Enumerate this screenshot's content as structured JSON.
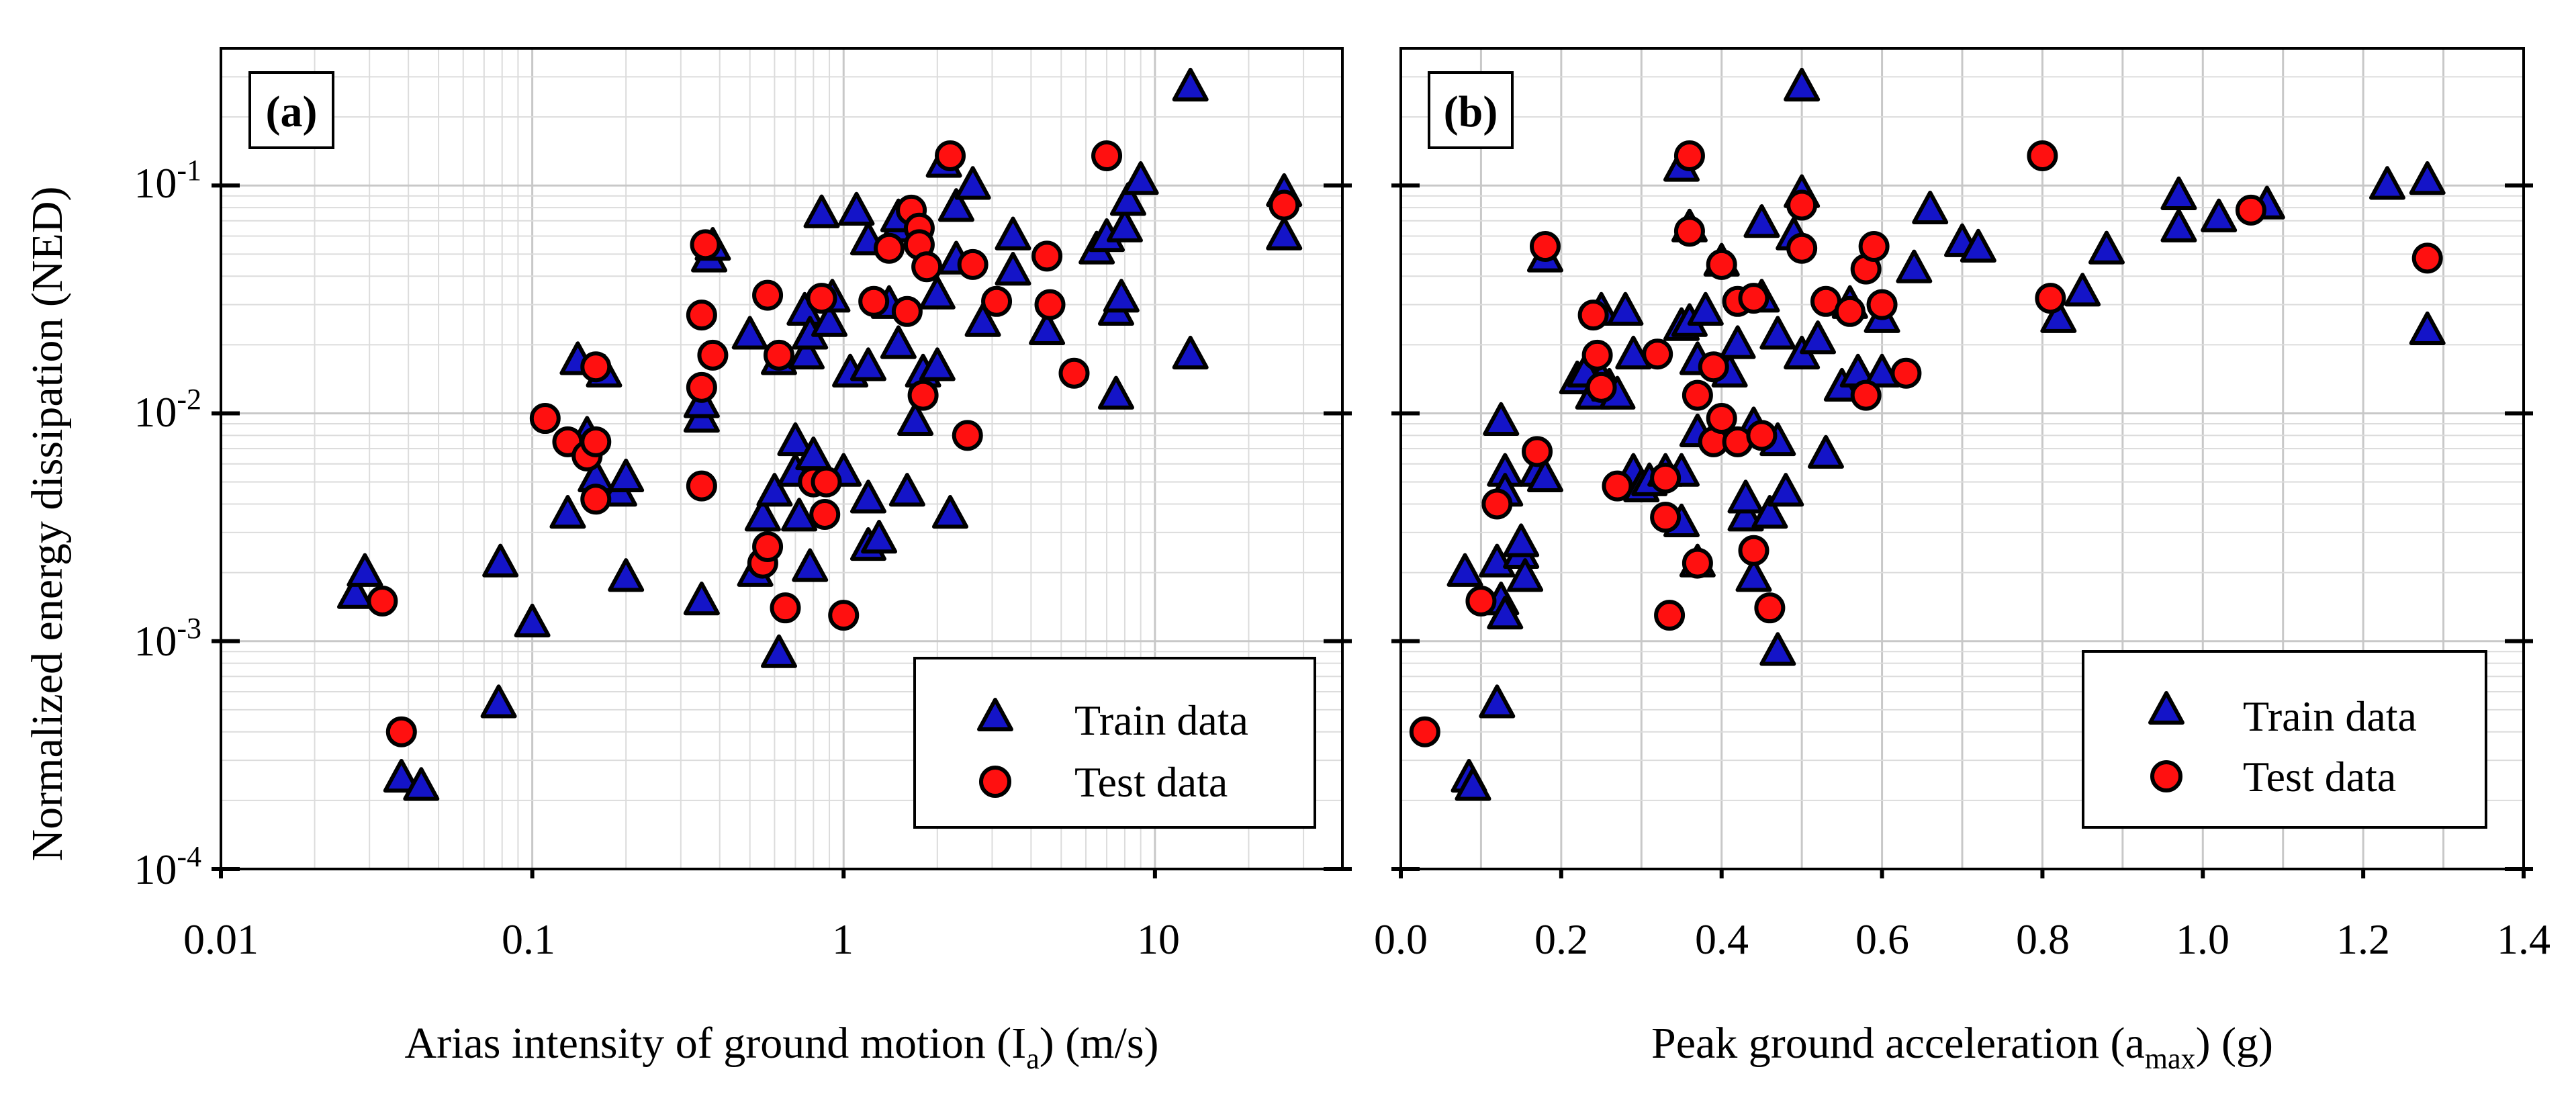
{
  "chart_data": [
    {
      "type": "scatter",
      "panel_label": "(a)",
      "xscale": "log",
      "yscale": "log",
      "xlim": [
        0.01,
        40
      ],
      "ylim": [
        0.0001,
        0.4
      ],
      "xticks": [
        0.01,
        0.1,
        1,
        10
      ],
      "xtick_labels": [
        "0.01",
        "0.1",
        "1",
        "10"
      ],
      "yticks": [
        0.0001,
        0.001,
        0.01,
        0.1
      ],
      "ytick_labels": [
        {
          "base": "10",
          "exp": "-4"
        },
        {
          "base": "10",
          "exp": "-3"
        },
        {
          "base": "10",
          "exp": "-2"
        },
        {
          "base": "10",
          "exp": "-1"
        }
      ],
      "xlabel": {
        "pre": "Arias intensity of ground motion (I",
        "sub": "a",
        "post": ") (m/s)"
      },
      "ylabel": "Normalized energy dissipation (NED)",
      "grid": true,
      "legend": "bottom-right",
      "series": [
        {
          "name": "Train data",
          "marker": "triangle",
          "color": "#1414c8",
          "points": [
            [
              0.027,
              0.0016
            ],
            [
              0.029,
              0.002
            ],
            [
              0.038,
              0.00025
            ],
            [
              0.044,
              0.00023
            ],
            [
              0.078,
              0.00053
            ],
            [
              0.079,
              0.0022
            ],
            [
              0.1,
              0.0012
            ],
            [
              0.13,
              0.0036
            ],
            [
              0.14,
              0.017
            ],
            [
              0.15,
              0.008
            ],
            [
              0.16,
              0.0052
            ],
            [
              0.17,
              0.015
            ],
            [
              0.19,
              0.0045
            ],
            [
              0.2,
              0.0052
            ],
            [
              0.2,
              0.0019
            ],
            [
              0.35,
              0.0015
            ],
            [
              0.35,
              0.0095
            ],
            [
              0.35,
              0.011
            ],
            [
              0.37,
              0.048
            ],
            [
              0.38,
              0.054
            ],
            [
              0.5,
              0.022
            ],
            [
              0.52,
              0.002
            ],
            [
              0.55,
              0.0035
            ],
            [
              0.6,
              0.0045
            ],
            [
              0.62,
              0.017
            ],
            [
              0.62,
              0.00088
            ],
            [
              0.7,
              0.0055
            ],
            [
              0.7,
              0.0075
            ],
            [
              0.72,
              0.0035
            ],
            [
              0.75,
              0.028
            ],
            [
              0.76,
              0.018
            ],
            [
              0.78,
              0.022
            ],
            [
              0.78,
              0.0021
            ],
            [
              0.8,
              0.0065
            ],
            [
              0.85,
              0.075
            ],
            [
              0.9,
              0.025
            ],
            [
              0.92,
              0.032
            ],
            [
              1.0,
              0.0055
            ],
            [
              1.05,
              0.015
            ],
            [
              1.1,
              0.077
            ],
            [
              1.2,
              0.057
            ],
            [
              1.2,
              0.016
            ],
            [
              1.2,
              0.0042
            ],
            [
              1.2,
              0.0026
            ],
            [
              1.3,
              0.0028
            ],
            [
              1.4,
              0.03
            ],
            [
              1.5,
              0.065
            ],
            [
              1.5,
              0.072
            ],
            [
              1.5,
              0.02
            ],
            [
              1.6,
              0.0045
            ],
            [
              1.7,
              0.0092
            ],
            [
              1.8,
              0.015
            ],
            [
              2.0,
              0.016
            ],
            [
              2.0,
              0.033
            ],
            [
              2.1,
              0.125
            ],
            [
              2.2,
              0.0036
            ],
            [
              2.3,
              0.08
            ],
            [
              2.3,
              0.047
            ],
            [
              2.6,
              0.1
            ],
            [
              2.8,
              0.025
            ],
            [
              3.5,
              0.06
            ],
            [
              3.5,
              0.042
            ],
            [
              4.5,
              0.023
            ],
            [
              6.5,
              0.052
            ],
            [
              7.0,
              0.059
            ],
            [
              7.5,
              0.012
            ],
            [
              7.5,
              0.028
            ],
            [
              7.8,
              0.032
            ],
            [
              8.0,
              0.065
            ],
            [
              8.2,
              0.085
            ],
            [
              9.0,
              0.105
            ],
            [
              13.0,
              0.018
            ],
            [
              13.0,
              0.27
            ],
            [
              26.0,
              0.06
            ],
            [
              26.0,
              0.093
            ]
          ]
        },
        {
          "name": "Test data",
          "marker": "circle",
          "color": "#ff1010",
          "points": [
            [
              0.033,
              0.0015
            ],
            [
              0.038,
              0.0004
            ],
            [
              0.11,
              0.0095
            ],
            [
              0.13,
              0.0075
            ],
            [
              0.15,
              0.0065
            ],
            [
              0.16,
              0.0075
            ],
            [
              0.16,
              0.016
            ],
            [
              0.16,
              0.0042
            ],
            [
              0.35,
              0.0048
            ],
            [
              0.35,
              0.013
            ],
            [
              0.35,
              0.027
            ],
            [
              0.36,
              0.055
            ],
            [
              0.38,
              0.018
            ],
            [
              0.55,
              0.0022
            ],
            [
              0.57,
              0.0026
            ],
            [
              0.57,
              0.033
            ],
            [
              0.62,
              0.018
            ],
            [
              0.65,
              0.0014
            ],
            [
              0.8,
              0.005
            ],
            [
              0.85,
              0.032
            ],
            [
              0.87,
              0.0036
            ],
            [
              0.88,
              0.005
            ],
            [
              1.0,
              0.0013
            ],
            [
              1.25,
              0.031
            ],
            [
              1.4,
              0.053
            ],
            [
              1.6,
              0.028
            ],
            [
              1.65,
              0.078
            ],
            [
              1.75,
              0.065
            ],
            [
              1.75,
              0.055
            ],
            [
              1.8,
              0.012
            ],
            [
              1.85,
              0.044
            ],
            [
              2.2,
              0.135
            ],
            [
              2.5,
              0.008
            ],
            [
              2.6,
              0.045
            ],
            [
              3.1,
              0.031
            ],
            [
              4.5,
              0.049
            ],
            [
              4.6,
              0.03
            ],
            [
              5.5,
              0.015
            ],
            [
              7.0,
              0.135
            ],
            [
              26.0,
              0.082
            ]
          ]
        }
      ]
    },
    {
      "type": "scatter",
      "panel_label": "(b)",
      "xscale": "linear",
      "yscale": "log",
      "xlim": [
        0.0,
        1.4
      ],
      "ylim": [
        0.0001,
        0.4
      ],
      "xticks": [
        0.0,
        0.2,
        0.4,
        0.6,
        0.8,
        1.0,
        1.2,
        1.4
      ],
      "xtick_labels": [
        "0.0",
        "0.2",
        "0.4",
        "0.6",
        "0.8",
        "1.0",
        "1.2",
        "1.4"
      ],
      "yticks": [
        0.0001,
        0.001,
        0.01,
        0.1
      ],
      "xlabel": {
        "pre": "Peak ground acceleration (a",
        "sub": "max",
        "post": ") (g)"
      },
      "grid": true,
      "legend": "bottom-right",
      "series": [
        {
          "name": "Train data",
          "marker": "triangle",
          "color": "#1414c8",
          "points": [
            [
              0.085,
              0.00025
            ],
            [
              0.09,
              0.00023
            ],
            [
              0.08,
              0.002
            ],
            [
              0.12,
              0.00053
            ],
            [
              0.12,
              0.0022
            ],
            [
              0.125,
              0.0015
            ],
            [
              0.125,
              0.0092
            ],
            [
              0.13,
              0.0013
            ],
            [
              0.13,
              0.0055
            ],
            [
              0.13,
              0.0045
            ],
            [
              0.15,
              0.0024
            ],
            [
              0.15,
              0.0027
            ],
            [
              0.155,
              0.0019
            ],
            [
              0.17,
              0.0055
            ],
            [
              0.18,
              0.0052
            ],
            [
              0.18,
              0.048
            ],
            [
              0.22,
              0.014
            ],
            [
              0.23,
              0.015
            ],
            [
              0.24,
              0.012
            ],
            [
              0.25,
              0.028
            ],
            [
              0.25,
              0.014
            ],
            [
              0.26,
              0.013
            ],
            [
              0.27,
              0.012
            ],
            [
              0.28,
              0.028
            ],
            [
              0.29,
              0.018
            ],
            [
              0.29,
              0.0055
            ],
            [
              0.3,
              0.0047
            ],
            [
              0.31,
              0.005
            ],
            [
              0.33,
              0.0055
            ],
            [
              0.35,
              0.0033
            ],
            [
              0.35,
              0.0055
            ],
            [
              0.35,
              0.024
            ],
            [
              0.35,
              0.12
            ],
            [
              0.36,
              0.065
            ],
            [
              0.36,
              0.025
            ],
            [
              0.37,
              0.017
            ],
            [
              0.37,
              0.0082
            ],
            [
              0.37,
              0.0022
            ],
            [
              0.38,
              0.028
            ],
            [
              0.4,
              0.009
            ],
            [
              0.4,
              0.046
            ],
            [
              0.41,
              0.015
            ],
            [
              0.42,
              0.02
            ],
            [
              0.43,
              0.0035
            ],
            [
              0.43,
              0.0042
            ],
            [
              0.44,
              0.0088
            ],
            [
              0.44,
              0.0019
            ],
            [
              0.45,
              0.068
            ],
            [
              0.45,
              0.032
            ],
            [
              0.46,
              0.0036
            ],
            [
              0.47,
              0.022
            ],
            [
              0.47,
              0.0075
            ],
            [
              0.47,
              0.0009
            ],
            [
              0.48,
              0.0045
            ],
            [
              0.49,
              0.06
            ],
            [
              0.5,
              0.092
            ],
            [
              0.5,
              0.018
            ],
            [
              0.5,
              0.27
            ],
            [
              0.52,
              0.021
            ],
            [
              0.53,
              0.0066
            ],
            [
              0.55,
              0.013
            ],
            [
              0.56,
              0.03
            ],
            [
              0.57,
              0.015
            ],
            [
              0.6,
              0.015
            ],
            [
              0.6,
              0.026
            ],
            [
              0.64,
              0.043
            ],
            [
              0.66,
              0.078
            ],
            [
              0.7,
              0.056
            ],
            [
              0.72,
              0.053
            ],
            [
              0.82,
              0.026
            ],
            [
              0.85,
              0.034
            ],
            [
              0.88,
              0.052
            ],
            [
              0.97,
              0.065
            ],
            [
              0.97,
              0.09
            ],
            [
              1.02,
              0.072
            ],
            [
              1.08,
              0.082
            ],
            [
              1.23,
              0.1
            ],
            [
              1.28,
              0.105
            ],
            [
              1.28,
              0.023
            ]
          ]
        },
        {
          "name": "Test data",
          "marker": "circle",
          "color": "#ff1010",
          "points": [
            [
              0.03,
              0.0004
            ],
            [
              0.1,
              0.0015
            ],
            [
              0.12,
              0.004
            ],
            [
              0.17,
              0.0068
            ],
            [
              0.18,
              0.054
            ],
            [
              0.24,
              0.027
            ],
            [
              0.245,
              0.018
            ],
            [
              0.25,
              0.013
            ],
            [
              0.27,
              0.0048
            ],
            [
              0.32,
              0.0182
            ],
            [
              0.33,
              0.0052
            ],
            [
              0.33,
              0.0035
            ],
            [
              0.335,
              0.0013
            ],
            [
              0.36,
              0.135
            ],
            [
              0.36,
              0.063
            ],
            [
              0.37,
              0.012
            ],
            [
              0.37,
              0.0022
            ],
            [
              0.39,
              0.016
            ],
            [
              0.39,
              0.0075
            ],
            [
              0.4,
              0.0095
            ],
            [
              0.4,
              0.045
            ],
            [
              0.42,
              0.031
            ],
            [
              0.42,
              0.0075
            ],
            [
              0.44,
              0.032
            ],
            [
              0.44,
              0.0025
            ],
            [
              0.45,
              0.008
            ],
            [
              0.46,
              0.0014
            ],
            [
              0.5,
              0.082
            ],
            [
              0.5,
              0.053
            ],
            [
              0.53,
              0.031
            ],
            [
              0.56,
              0.028
            ],
            [
              0.58,
              0.012
            ],
            [
              0.58,
              0.043
            ],
            [
              0.59,
              0.054
            ],
            [
              0.6,
              0.03
            ],
            [
              0.63,
              0.015
            ],
            [
              0.8,
              0.135
            ],
            [
              0.81,
              0.032
            ],
            [
              1.06,
              0.078
            ],
            [
              1.28,
              0.048
            ]
          ]
        }
      ]
    }
  ]
}
